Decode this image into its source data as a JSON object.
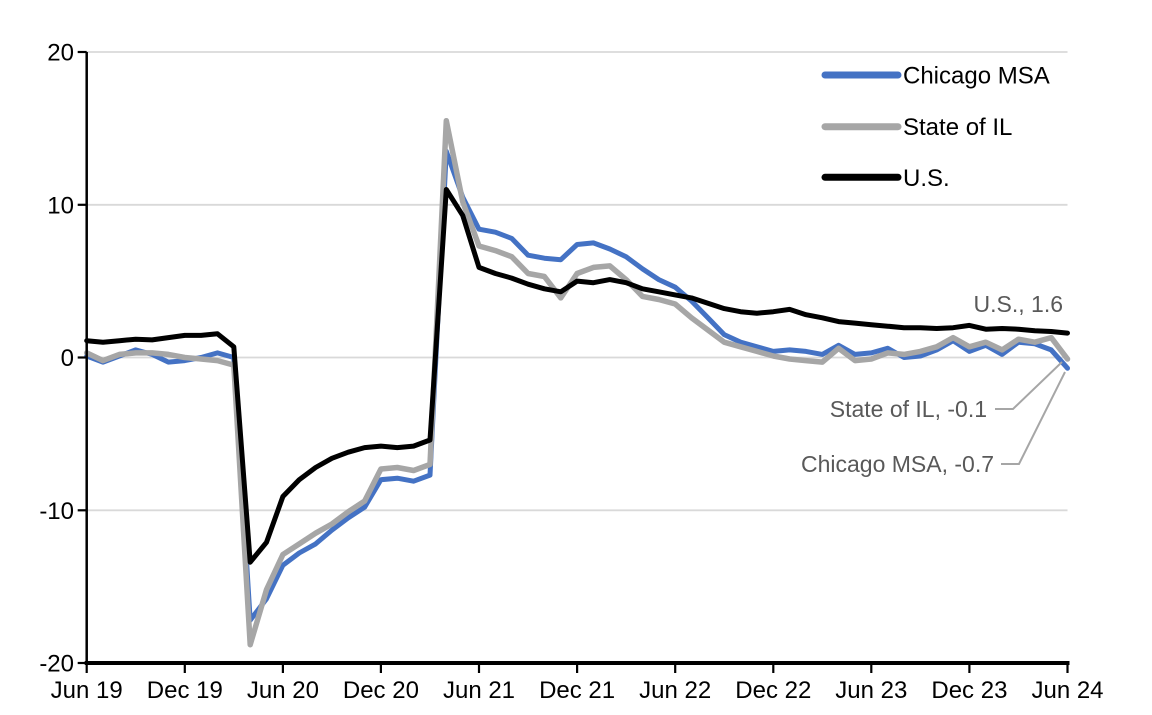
{
  "chart_data": {
    "type": "line",
    "title": "",
    "xlabel": "",
    "ylabel": "",
    "ylim": [
      -20,
      20
    ],
    "grid": true,
    "legend_position": "top-right",
    "colors": {
      "gridline": "#d9d9d9",
      "axis": "#000000",
      "annotation_text": "#595959",
      "leader_line": "#a6a6a6",
      "background": "#ffffff"
    },
    "y_ticks": [
      20,
      10,
      0,
      -10,
      -20
    ],
    "y_tick_labels": [
      "20",
      "10",
      "0",
      "-10",
      "-20"
    ],
    "x_tick_labels": [
      "Jun 19",
      "Dec 19",
      "Jun 20",
      "Dec 20",
      "Jun 21",
      "Dec 21",
      "Jun 22",
      "Dec 22",
      "Jun 23",
      "Dec 23",
      "Jun 24"
    ],
    "months": [
      "Jun 19",
      "Jul 19",
      "Aug 19",
      "Sep 19",
      "Oct 19",
      "Nov 19",
      "Dec 19",
      "Jan 20",
      "Feb 20",
      "Mar 20",
      "Apr 20",
      "May 20",
      "Jun 20",
      "Jul 20",
      "Aug 20",
      "Sep 20",
      "Oct 20",
      "Nov 20",
      "Dec 20",
      "Jan 21",
      "Feb 21",
      "Mar 21",
      "Apr 21",
      "May 21",
      "Jun 21",
      "Jul 21",
      "Aug 21",
      "Sep 21",
      "Oct 21",
      "Nov 21",
      "Dec 21",
      "Jan 22",
      "Feb 22",
      "Mar 22",
      "Apr 22",
      "May 22",
      "Jun 22",
      "Jul 22",
      "Aug 22",
      "Sep 22",
      "Oct 22",
      "Nov 22",
      "Dec 22",
      "Jan 23",
      "Feb 23",
      "Mar 23",
      "Apr 23",
      "May 23",
      "Jun 23",
      "Jul 23",
      "Aug 23",
      "Sep 23",
      "Oct 23",
      "Nov 23",
      "Dec 23",
      "Jan 24",
      "Feb 24",
      "Mar 24",
      "Apr 24",
      "May 24",
      "Jun 24"
    ],
    "series": [
      {
        "name": "Chicago MSA",
        "color": "#4472c4",
        "width": 5,
        "end_value": -0.7,
        "values": [
          0.1,
          -0.3,
          0.1,
          0.5,
          0.2,
          -0.3,
          -0.2,
          0.0,
          0.3,
          0.0,
          -17.2,
          -15.8,
          -13.6,
          -12.8,
          -12.2,
          -11.3,
          -10.5,
          -9.8,
          -8.0,
          -7.9,
          -8.1,
          -7.7,
          13.5,
          10.5,
          8.4,
          8.2,
          7.8,
          6.7,
          6.5,
          6.4,
          7.4,
          7.5,
          7.1,
          6.6,
          5.8,
          5.1,
          4.6,
          3.7,
          2.6,
          1.5,
          1.0,
          0.7,
          0.4,
          0.5,
          0.4,
          0.2,
          0.8,
          0.2,
          0.3,
          0.6,
          0.0,
          0.1,
          0.5,
          1.1,
          0.4,
          0.8,
          0.2,
          1.0,
          0.9,
          0.5,
          -0.7
        ]
      },
      {
        "name": "State of IL",
        "color": "#a6a6a6",
        "width": 5.5,
        "end_value": -0.1,
        "values": [
          0.3,
          -0.2,
          0.2,
          0.3,
          0.3,
          0.2,
          0.0,
          -0.1,
          -0.2,
          -0.5,
          -18.8,
          -15.2,
          -12.9,
          -12.2,
          -11.5,
          -10.9,
          -10.1,
          -9.4,
          -7.3,
          -7.2,
          -7.4,
          -7.0,
          15.5,
          10.2,
          7.3,
          7.0,
          6.6,
          5.5,
          5.3,
          3.9,
          5.5,
          5.9,
          6.0,
          5.1,
          4.0,
          3.8,
          3.5,
          2.6,
          1.8,
          1.0,
          0.7,
          0.4,
          0.1,
          -0.1,
          -0.2,
          -0.3,
          0.6,
          -0.2,
          -0.1,
          0.3,
          0.2,
          0.4,
          0.7,
          1.3,
          0.7,
          1.0,
          0.5,
          1.2,
          1.0,
          1.3,
          -0.1
        ]
      },
      {
        "name": "U.S.",
        "color": "#000000",
        "width": 5,
        "end_value": 1.6,
        "values": [
          1.1,
          1.0,
          1.1,
          1.2,
          1.15,
          1.3,
          1.45,
          1.45,
          1.55,
          0.7,
          -13.4,
          -12.1,
          -9.1,
          -8.0,
          -7.2,
          -6.6,
          -6.2,
          -5.9,
          -5.8,
          -5.9,
          -5.8,
          -5.4,
          11.0,
          9.3,
          5.9,
          5.5,
          5.2,
          4.8,
          4.5,
          4.3,
          5.0,
          4.9,
          5.1,
          4.9,
          4.5,
          4.3,
          4.1,
          3.9,
          3.55,
          3.2,
          3.0,
          2.9,
          3.0,
          3.15,
          2.8,
          2.6,
          2.35,
          2.25,
          2.15,
          2.05,
          1.95,
          1.95,
          1.9,
          1.95,
          2.1,
          1.85,
          1.9,
          1.85,
          1.75,
          1.7,
          1.6
        ]
      }
    ],
    "annotations": [
      {
        "series": "U.S.",
        "value": 1.6,
        "text": "U.S., 1.6"
      },
      {
        "series": "State of IL",
        "value": -0.1,
        "text": "State of IL, -0.1"
      },
      {
        "series": "Chicago MSA",
        "value": -0.7,
        "text": "Chicago MSA, -0.7"
      }
    ]
  }
}
